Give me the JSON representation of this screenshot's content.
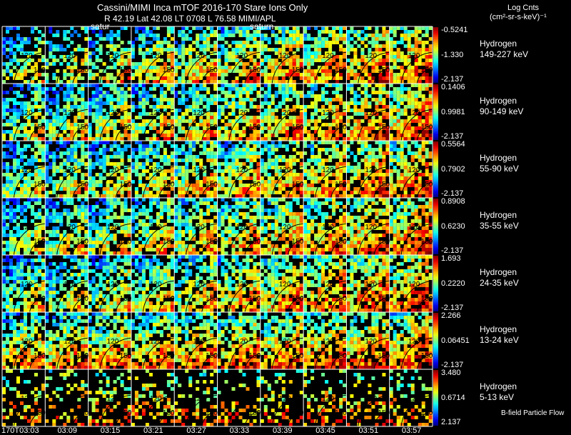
{
  "header": {
    "title": "Cassini/MIMI Inca mTOF  2016-170    Stare    Ions Only",
    "ephemeris": "R        42.19 Lat 42.08 LT 0708 L        76.58  MIMI/APL",
    "saturn_label_1": "satur",
    "saturn_label_2": "saturn",
    "units_line1": "Log Cnts",
    "units_line2": "(cm²-sr-s-keV)⁻¹"
  },
  "footer": {
    "bfield_label": "B-field Particle Flow"
  },
  "chart_data": {
    "type": "heatmap",
    "species": "Hydrogen",
    "time_labels": [
      "170T03:03",
      "03:09",
      "03:15",
      "03:21",
      "03:27",
      "03:33",
      "03:39",
      "03:45",
      "03:51",
      "03:57"
    ],
    "contour_labels": [
      "120",
      "150"
    ],
    "rows": [
      {
        "name": "Hydrogen",
        "energy": "149-227 keV",
        "cbar_max": "-0.5241",
        "cbar_mid": "-1.330",
        "cbar_min": "-2.137"
      },
      {
        "name": "Hydrogen",
        "energy": "90-149 keV",
        "cbar_max": "0.1406",
        "cbar_mid": "0.9981",
        "cbar_min": "-2.137"
      },
      {
        "name": "Hydrogen",
        "energy": "55-90 keV",
        "cbar_max": "0.5564",
        "cbar_mid": "0.7902",
        "cbar_min": "-2.137"
      },
      {
        "name": "Hydrogen",
        "energy": "35-55 keV",
        "cbar_max": "0.8908",
        "cbar_mid": "0.6230",
        "cbar_min": "-2.137"
      },
      {
        "name": "Hydrogen",
        "energy": "24-35 keV",
        "cbar_max": "1.693",
        "cbar_mid": "0.2220",
        "cbar_min": "-2.137"
      },
      {
        "name": "Hydrogen",
        "energy": "13-24 keV",
        "cbar_max": "2.266",
        "cbar_mid": "0.06451",
        "cbar_min": "-2.137"
      },
      {
        "name": "Hydrogen",
        "energy": "5-13 keV",
        "cbar_max": "3.480",
        "cbar_mid": "0.6714",
        "cbar_min": "2.137"
      }
    ]
  }
}
